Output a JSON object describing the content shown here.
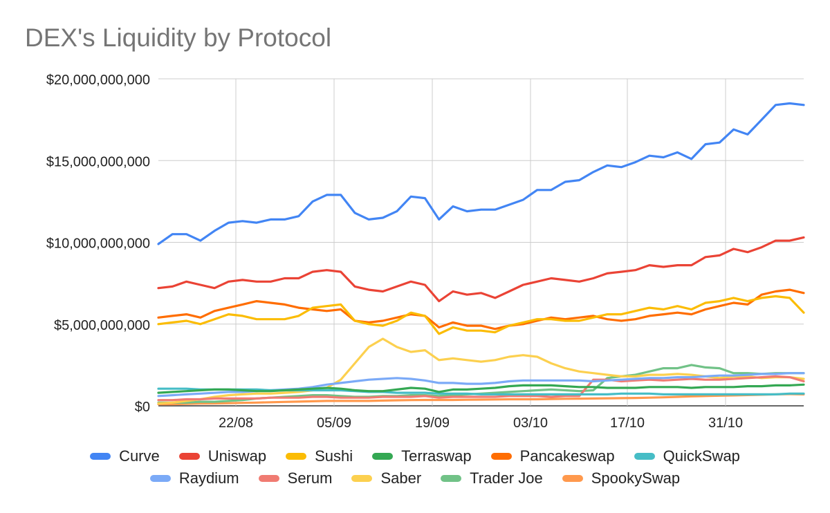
{
  "chart_data": {
    "type": "line",
    "title": "DEX's Liquidity by Protocol",
    "xlabel": "",
    "ylabel": "",
    "x_tick_labels": [
      "22/08",
      "05/09",
      "19/09",
      "03/10",
      "17/10",
      "31/10"
    ],
    "y_tick_labels": [
      "$0",
      "$5,000,000,000",
      "$10,000,000,000",
      "$15,000,000,000",
      "$20,000,000,000"
    ],
    "ylim": [
      0,
      20000000000
    ],
    "grid": true,
    "legend_position": "bottom",
    "dates": [
      "12/08",
      "14/08",
      "16/08",
      "18/08",
      "20/08",
      "22/08",
      "24/08",
      "26/08",
      "28/08",
      "30/08",
      "01/09",
      "03/09",
      "05/09",
      "07/09",
      "09/09",
      "11/09",
      "13/09",
      "15/09",
      "17/09",
      "19/09",
      "21/09",
      "23/09",
      "25/09",
      "27/09",
      "29/09",
      "01/10",
      "03/10",
      "05/10",
      "07/10",
      "09/10",
      "11/10",
      "13/10",
      "15/10",
      "17/10",
      "19/10",
      "21/10",
      "23/10",
      "25/10",
      "27/10",
      "29/10",
      "31/10",
      "02/11",
      "04/11",
      "06/11",
      "08/11",
      "10/11",
      "11/11"
    ],
    "series": [
      {
        "name": "Curve",
        "color": "#4285f4",
        "values": [
          9900000000.0,
          10500000000.0,
          10500000000.0,
          10100000000.0,
          10700000000.0,
          11200000000.0,
          11300000000.0,
          11200000000.0,
          11400000000.0,
          11400000000.0,
          11600000000.0,
          12500000000.0,
          12900000000.0,
          12900000000.0,
          11800000000.0,
          11400000000.0,
          11500000000.0,
          11900000000.0,
          12800000000.0,
          12700000000.0,
          11400000000.0,
          12200000000.0,
          11900000000.0,
          12000000000.0,
          12000000000.0,
          12300000000.0,
          12600000000.0,
          13200000000.0,
          13200000000.0,
          13700000000.0,
          13800000000.0,
          14300000000.0,
          14700000000.0,
          14600000000.0,
          14900000000.0,
          15300000000.0,
          15200000000.0,
          15500000000.0,
          15100000000.0,
          16000000000.0,
          16100000000.0,
          16900000000.0,
          16600000000.0,
          17500000000.0,
          18400000000.0,
          18500000000.0,
          18400000000.0
        ]
      },
      {
        "name": "Uniswap",
        "color": "#ea4335",
        "values": [
          7200000000.0,
          7300000000.0,
          7600000000.0,
          7400000000.0,
          7200000000.0,
          7600000000.0,
          7700000000.0,
          7600000000.0,
          7600000000.0,
          7800000000.0,
          7800000000.0,
          8200000000.0,
          8300000000.0,
          8200000000.0,
          7300000000.0,
          7100000000.0,
          7000000000.0,
          7300000000.0,
          7600000000.0,
          7400000000.0,
          6400000000.0,
          7000000000.0,
          6800000000.0,
          6900000000.0,
          6600000000.0,
          7000000000.0,
          7400000000.0,
          7600000000.0,
          7800000000.0,
          7700000000.0,
          7600000000.0,
          7800000000.0,
          8100000000.0,
          8200000000.0,
          8300000000.0,
          8600000000.0,
          8500000000.0,
          8600000000.0,
          8600000000.0,
          9100000000.0,
          9200000000.0,
          9600000000.0,
          9400000000.0,
          9700000000.0,
          10100000000.0,
          10100000000.0,
          10300000000.0
        ]
      },
      {
        "name": "Sushi",
        "color": "#fbbc04",
        "values": [
          5000000000.0,
          5100000000.0,
          5200000000.0,
          5000000000.0,
          5300000000.0,
          5600000000.0,
          5500000000.0,
          5300000000.0,
          5300000000.0,
          5300000000.0,
          5500000000.0,
          6000000000.0,
          6100000000.0,
          6200000000.0,
          5200000000.0,
          5000000000.0,
          4900000000.0,
          5200000000.0,
          5700000000.0,
          5500000000.0,
          4400000000.0,
          4800000000.0,
          4600000000.0,
          4600000000.0,
          4500000000.0,
          4900000000.0,
          5100000000.0,
          5300000000.0,
          5300000000.0,
          5200000000.0,
          5200000000.0,
          5400000000.0,
          5600000000.0,
          5600000000.0,
          5800000000.0,
          6000000000.0,
          5900000000.0,
          6100000000.0,
          5900000000.0,
          6300000000.0,
          6400000000.0,
          6600000000.0,
          6400000000.0,
          6600000000.0,
          6700000000.0,
          6600000000.0,
          5700000000.0
        ]
      },
      {
        "name": "Terraswap",
        "color": "#34a853",
        "values": [
          800000000.0,
          850000000.0,
          900000000.0,
          950000000.0,
          1000000000.0,
          1000000000.0,
          950000000.0,
          900000000.0,
          900000000.0,
          950000000.0,
          1000000000.0,
          1050000000.0,
          1100000000.0,
          1050000000.0,
          950000000.0,
          900000000.0,
          900000000.0,
          1000000000.0,
          1100000000.0,
          1050000000.0,
          850000000.0,
          1000000000.0,
          1000000000.0,
          1050000000.0,
          1100000000.0,
          1200000000.0,
          1250000000.0,
          1250000000.0,
          1250000000.0,
          1200000000.0,
          1150000000.0,
          1150000000.0,
          1100000000.0,
          1100000000.0,
          1100000000.0,
          1150000000.0,
          1150000000.0,
          1150000000.0,
          1100000000.0,
          1150000000.0,
          1150000000.0,
          1150000000.0,
          1200000000.0,
          1200000000.0,
          1250000000.0,
          1250000000.0,
          1300000000.0
        ]
      },
      {
        "name": "Pancakeswap",
        "color": "#ff6d01",
        "values": [
          5400000000.0,
          5500000000.0,
          5600000000.0,
          5400000000.0,
          5800000000.0,
          6000000000.0,
          6200000000.0,
          6400000000.0,
          6300000000.0,
          6200000000.0,
          6000000000.0,
          5900000000.0,
          5800000000.0,
          5900000000.0,
          5200000000.0,
          5100000000.0,
          5200000000.0,
          5400000000.0,
          5600000000.0,
          5500000000.0,
          4800000000.0,
          5100000000.0,
          4900000000.0,
          4900000000.0,
          4700000000.0,
          4900000000.0,
          5000000000.0,
          5200000000.0,
          5400000000.0,
          5300000000.0,
          5400000000.0,
          5500000000.0,
          5300000000.0,
          5200000000.0,
          5300000000.0,
          5500000000.0,
          5600000000.0,
          5700000000.0,
          5600000000.0,
          5900000000.0,
          6100000000.0,
          6300000000.0,
          6200000000.0,
          6800000000.0,
          7000000000.0,
          7100000000.0,
          6900000000.0
        ]
      },
      {
        "name": "QuickSwap",
        "color": "#46bdc6",
        "values": [
          1050000000.0,
          1050000000.0,
          1050000000.0,
          1000000000.0,
          1000000000.0,
          1000000000.0,
          1000000000.0,
          1000000000.0,
          950000000.0,
          950000000.0,
          950000000.0,
          950000000.0,
          950000000.0,
          950000000.0,
          900000000.0,
          850000000.0,
          850000000.0,
          800000000.0,
          800000000.0,
          800000000.0,
          750000000.0,
          750000000.0,
          750000000.0,
          700000000.0,
          700000000.0,
          700000000.0,
          700000000.0,
          700000000.0,
          700000000.0,
          700000000.0,
          700000000.0,
          700000000.0,
          700000000.0,
          750000000.0,
          750000000.0,
          750000000.0,
          700000000.0,
          700000000.0,
          700000000.0,
          700000000.0,
          700000000.0,
          700000000.0,
          700000000.0,
          700000000.0,
          700000000.0,
          750000000.0,
          750000000.0
        ]
      },
      {
        "name": "Raydium",
        "color": "#7baaf7",
        "values": [
          600000000.0,
          650000000.0,
          700000000.0,
          750000000.0,
          800000000.0,
          850000000.0,
          850000000.0,
          900000000.0,
          950000000.0,
          1000000000.0,
          1050000000.0,
          1150000000.0,
          1300000000.0,
          1400000000.0,
          1500000000.0,
          1600000000.0,
          1650000000.0,
          1700000000.0,
          1650000000.0,
          1550000000.0,
          1400000000.0,
          1400000000.0,
          1350000000.0,
          1350000000.0,
          1400000000.0,
          1500000000.0,
          1550000000.0,
          1550000000.0,
          1550000000.0,
          1550000000.0,
          1550000000.0,
          1500000000.0,
          1550000000.0,
          1600000000.0,
          1650000000.0,
          1700000000.0,
          1700000000.0,
          1750000000.0,
          1750000000.0,
          1800000000.0,
          1850000000.0,
          1850000000.0,
          1900000000.0,
          1950000000.0,
          1950000000.0,
          2000000000.0,
          2000000000.0
        ]
      },
      {
        "name": "Serum",
        "color": "#f07b72",
        "values": [
          350000000.0,
          350000000.0,
          400000000.0,
          400000000.0,
          450000000.0,
          450000000.0,
          450000000.0,
          450000000.0,
          500000000.0,
          500000000.0,
          500000000.0,
          550000000.0,
          550000000.0,
          500000000.0,
          500000000.0,
          500000000.0,
          550000000.0,
          550000000.0,
          550000000.0,
          600000000.0,
          500000000.0,
          550000000.0,
          550000000.0,
          550000000.0,
          550000000.0,
          600000000.0,
          600000000.0,
          600000000.0,
          550000000.0,
          600000000.0,
          600000000.0,
          1600000000.0,
          1600000000.0,
          1500000000.0,
          1550000000.0,
          1600000000.0,
          1550000000.0,
          1600000000.0,
          1650000000.0,
          1600000000.0,
          1600000000.0,
          1650000000.0,
          1700000000.0,
          1750000000.0,
          1800000000.0,
          1750000000.0,
          1500000000.0
        ]
      },
      {
        "name": "Saber",
        "color": "#fcd04f",
        "values": [
          150000000.0,
          200000000.0,
          300000000.0,
          400000000.0,
          550000000.0,
          650000000.0,
          700000000.0,
          750000000.0,
          750000000.0,
          800000000.0,
          850000000.0,
          950000000.0,
          1100000000.0,
          1600000000.0,
          2600000000.0,
          3600000000.0,
          4100000000.0,
          3600000000.0,
          3300000000.0,
          3400000000.0,
          2800000000.0,
          2900000000.0,
          2800000000.0,
          2700000000.0,
          2800000000.0,
          3000000000.0,
          3100000000.0,
          3000000000.0,
          2600000000.0,
          2300000000.0,
          2100000000.0,
          2000000000.0,
          1900000000.0,
          1800000000.0,
          1800000000.0,
          1900000000.0,
          1900000000.0,
          1950000000.0,
          1900000000.0,
          1800000000.0,
          1700000000.0,
          1800000000.0,
          1800000000.0,
          1700000000.0,
          1750000000.0,
          1750000000.0,
          1650000000.0
        ]
      },
      {
        "name": "Trader Joe",
        "color": "#71c287",
        "values": [
          200000000.0,
          200000000.0,
          200000000.0,
          250000000.0,
          250000000.0,
          300000000.0,
          350000000.0,
          450000000.0,
          500000000.0,
          550000000.0,
          600000000.0,
          650000000.0,
          650000000.0,
          600000000.0,
          550000000.0,
          550000000.0,
          600000000.0,
          600000000.0,
          650000000.0,
          650000000.0,
          600000000.0,
          650000000.0,
          700000000.0,
          750000000.0,
          800000000.0,
          850000000.0,
          900000000.0,
          950000000.0,
          1000000000.0,
          950000000.0,
          900000000.0,
          950000000.0,
          1700000000.0,
          1800000000.0,
          1900000000.0,
          2100000000.0,
          2300000000.0,
          2300000000.0,
          2500000000.0,
          2350000000.0,
          2300000000.0,
          2000000000.0,
          2000000000.0,
          1950000000.0,
          2000000000.0,
          2000000000.0,
          2000000000.0
        ]
      },
      {
        "name": "SpookySwap",
        "color": "#ff994d",
        "values": [
          100000000.0,
          100000000.0,
          120000000.0,
          140000000.0,
          150000000.0,
          160000000.0,
          180000000.0,
          200000000.0,
          220000000.0,
          240000000.0,
          260000000.0,
          280000000.0,
          300000000.0,
          300000000.0,
          300000000.0,
          300000000.0,
          320000000.0,
          340000000.0,
          350000000.0,
          360000000.0,
          360000000.0,
          360000000.0,
          370000000.0,
          380000000.0,
          390000000.0,
          400000000.0,
          400000000.0,
          400000000.0,
          420000000.0,
          430000000.0,
          440000000.0,
          450000000.0,
          460000000.0,
          470000000.0,
          480000000.0,
          500000000.0,
          520000000.0,
          550000000.0,
          580000000.0,
          600000000.0,
          620000000.0,
          640000000.0,
          660000000.0,
          680000000.0,
          700000000.0,
          720000000.0,
          700000000.0
        ]
      }
    ]
  }
}
